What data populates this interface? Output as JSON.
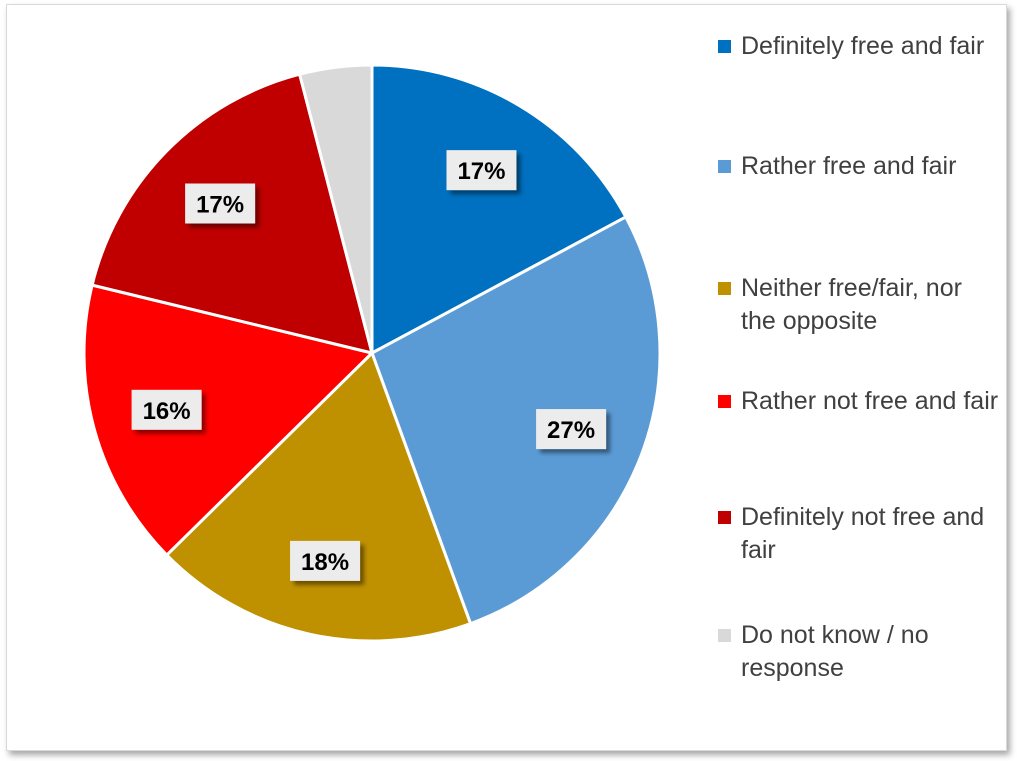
{
  "chart_data": {
    "type": "pie",
    "title": "",
    "slices": [
      {
        "label": "Definitely free and fair",
        "value": 17,
        "display": "17%",
        "color": "#0070C0"
      },
      {
        "label": "Rather free and fair",
        "value": 27,
        "display": "27%",
        "color": "#5B9BD5"
      },
      {
        "label": "Neither free/fair, nor the opposite",
        "value": 18,
        "display": "18%",
        "color": "#BF9000"
      },
      {
        "label": "Rather not free and fair",
        "value": 16,
        "display": "16%",
        "color": "#FF0000"
      },
      {
        "label": "Definitely not free and fair",
        "value": 17,
        "display": "17%",
        "color": "#C00000"
      },
      {
        "label": "Do not know / no response",
        "value": 4,
        "display": "",
        "color": "#D9D9D9"
      }
    ],
    "legend_position": "right",
    "start_angle_deg": 0,
    "direction": "clockwise"
  }
}
